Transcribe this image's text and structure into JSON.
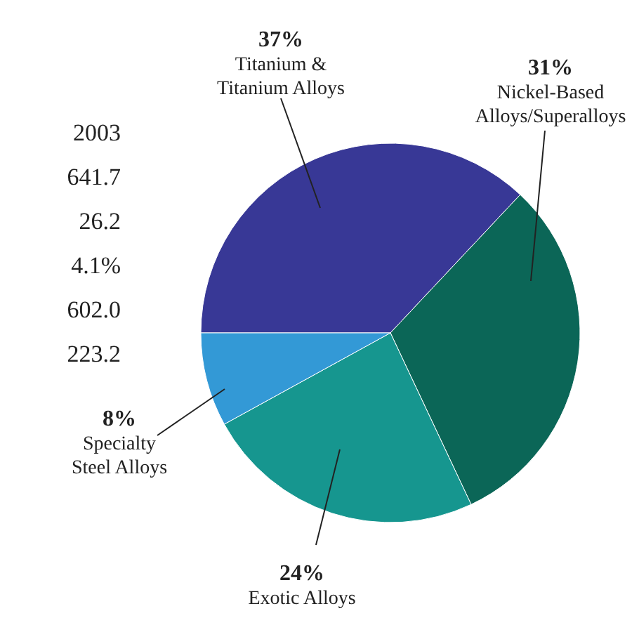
{
  "chart_data": {
    "type": "pie",
    "categories": [
      "Titanium &\nTitanium Alloys",
      "Nickel-Based\nAlloys/Superalloys",
      "Exotic Alloys",
      "Specialty\nSteel Alloys"
    ],
    "values": [
      37,
      31,
      24,
      8
    ],
    "value_labels": [
      "37%",
      "31%",
      "24%",
      "8%"
    ],
    "colors": [
      "#383896",
      "#0b6657",
      "#16968f",
      "#3399d6"
    ],
    "annotations": [
      "2003",
      "641.7",
      "26.2",
      "4.1%",
      "602.0",
      "223.2"
    ]
  }
}
